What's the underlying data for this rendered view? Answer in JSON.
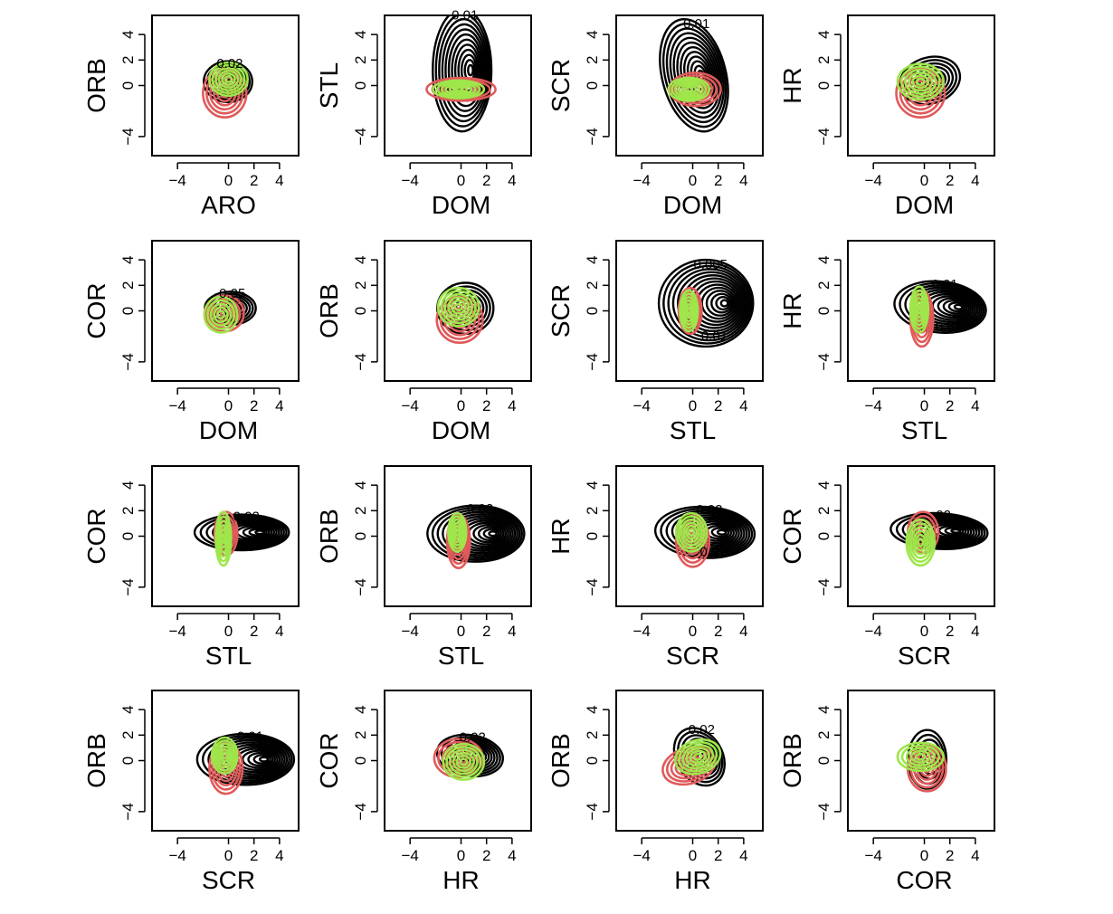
{
  "chart_data": [
    {
      "type": "contour",
      "xlabel": "ARO",
      "ylabel": "ORB",
      "xlim": [
        -6,
        5.5
      ],
      "ylim": [
        -5.5,
        5.5
      ],
      "xticks": [
        -4,
        0,
        2,
        4
      ],
      "yticks": [
        -4,
        0,
        2,
        4
      ],
      "xtick_labels": [
        "−4",
        "0",
        "2",
        "4"
      ],
      "ytick_labels": [
        "−4",
        "0",
        "2",
        "4"
      ],
      "contour_labels": [
        "0.02"
      ],
      "black": {
        "cx": 0,
        "cy": 0.3,
        "rx": 1.9,
        "ry": 1.6,
        "n": 8,
        "shift": 0.2,
        "tilt": 0
      },
      "red": {
        "cx": -0.3,
        "cy": -0.6,
        "rx": 1.7,
        "ry": 1.9,
        "n": 6,
        "shift": 0,
        "tilt": 0
      },
      "green": {
        "cx": 0,
        "cy": 0.5,
        "rx": 1.5,
        "ry": 1.3,
        "n": 6,
        "shift": 0,
        "tilt": 0
      }
    },
    {
      "type": "contour",
      "xlabel": "DOM",
      "ylabel": "STL",
      "xlim": [
        -6,
        5.5
      ],
      "ylim": [
        -5.5,
        5.5
      ],
      "xticks": [
        -4,
        0,
        2,
        4
      ],
      "yticks": [
        -4,
        0,
        2,
        4
      ],
      "xtick_labels": [
        "−4",
        "0",
        "2",
        "4"
      ],
      "ytick_labels": [
        "−4",
        "0",
        "2",
        "4"
      ],
      "contour_labels": [
        "0.01"
      ],
      "black": {
        "cx": 0.2,
        "cy": 1.2,
        "rx": 2.3,
        "ry": 4.8,
        "n": 12,
        "shift": 0.6,
        "tilt": 0
      },
      "red": {
        "cx": 0,
        "cy": -0.3,
        "rx": 2.7,
        "ry": 0.9,
        "n": 6,
        "shift": 0,
        "tilt": 0
      },
      "green": {
        "cx": -0.2,
        "cy": -0.3,
        "rx": 2.0,
        "ry": 0.7,
        "n": 6,
        "shift": 0,
        "tilt": 0
      }
    },
    {
      "type": "contour",
      "xlabel": "DOM",
      "ylabel": "SCR",
      "xlim": [
        -6,
        5.5
      ],
      "ylim": [
        -5.5,
        5.5
      ],
      "xticks": [
        -4,
        0,
        2,
        4
      ],
      "yticks": [
        -4,
        0,
        2,
        4
      ],
      "xtick_labels": [
        "−4",
        "0",
        "2",
        "4"
      ],
      "ytick_labels": [
        "−4",
        "0",
        "2",
        "4"
      ],
      "contour_labels": [
        "0.01"
      ],
      "black": {
        "cx": 0.2,
        "cy": 0.8,
        "rx": 2.5,
        "ry": 4.5,
        "n": 12,
        "shift": 0.5,
        "tilt": 0.25
      },
      "red": {
        "cx": 0.2,
        "cy": -0.3,
        "rx": 2.0,
        "ry": 1.3,
        "n": 6,
        "shift": 0,
        "tilt": 0
      },
      "green": {
        "cx": -0.3,
        "cy": -0.3,
        "rx": 1.6,
        "ry": 0.9,
        "n": 6,
        "shift": 0,
        "tilt": 0
      }
    },
    {
      "type": "contour",
      "xlabel": "DOM",
      "ylabel": "HR",
      "xlim": [
        -6,
        5.5
      ],
      "ylim": [
        -5.5,
        5.5
      ],
      "xticks": [
        -4,
        0,
        2,
        4
      ],
      "yticks": [
        -4,
        0,
        2,
        4
      ],
      "xtick_labels": [
        "−4",
        "0",
        "2",
        "4"
      ],
      "ytick_labels": [
        "−4",
        "0",
        "2",
        "4"
      ],
      "contour_labels": [],
      "black": {
        "cx": 0.5,
        "cy": 0.4,
        "rx": 2.4,
        "ry": 1.8,
        "n": 7,
        "shift": 0.3,
        "tilt": 0.3
      },
      "red": {
        "cx": -0.3,
        "cy": -0.6,
        "rx": 1.9,
        "ry": 1.9,
        "n": 6,
        "shift": 0,
        "tilt": 0
      },
      "green": {
        "cx": -0.3,
        "cy": 0.3,
        "rx": 1.8,
        "ry": 1.4,
        "n": 6,
        "shift": 0,
        "tilt": 0
      }
    },
    {
      "type": "contour",
      "xlabel": "DOM",
      "ylabel": "COR",
      "xlim": [
        -6,
        5.5
      ],
      "ylim": [
        -5.5,
        5.5
      ],
      "xticks": [
        -4,
        0,
        2,
        4
      ],
      "yticks": [
        -4,
        0,
        2,
        4
      ],
      "xtick_labels": [
        "−4",
        "0",
        "2",
        "4"
      ],
      "ytick_labels": [
        "−4",
        "0",
        "2",
        "4"
      ],
      "contour_labels": [
        "0.05"
      ],
      "black": {
        "cx": 0.2,
        "cy": 0.2,
        "rx": 2.0,
        "ry": 1.3,
        "n": 7,
        "shift": 0.3,
        "tilt": 0
      },
      "red": {
        "cx": -0.3,
        "cy": -0.2,
        "rx": 1.5,
        "ry": 1.4,
        "n": 5,
        "shift": 0,
        "tilt": 0
      },
      "green": {
        "cx": -0.6,
        "cy": -0.3,
        "rx": 1.3,
        "ry": 1.4,
        "n": 5,
        "shift": 0,
        "tilt": 0
      }
    },
    {
      "type": "contour",
      "xlabel": "DOM",
      "ylabel": "ORB",
      "xlim": [
        -6,
        5.5
      ],
      "ylim": [
        -5.5,
        5.5
      ],
      "xticks": [
        -4,
        0,
        2,
        4
      ],
      "yticks": [
        -4,
        0,
        2,
        4
      ],
      "xtick_labels": [
        "−4",
        "0",
        "2",
        "4"
      ],
      "ytick_labels": [
        "−4",
        "0",
        "2",
        "4"
      ],
      "contour_labels": [],
      "black": {
        "cx": 0.4,
        "cy": 0.2,
        "rx": 2.2,
        "ry": 2.0,
        "n": 7,
        "shift": 0.3,
        "tilt": 0
      },
      "red": {
        "cx": -0.1,
        "cy": -0.7,
        "rx": 1.8,
        "ry": 1.8,
        "n": 6,
        "shift": 0,
        "tilt": 0
      },
      "green": {
        "cx": -0.2,
        "cy": 0.3,
        "rx": 1.6,
        "ry": 1.5,
        "n": 6,
        "shift": 0,
        "tilt": 0
      }
    },
    {
      "type": "contour",
      "xlabel": "STL",
      "ylabel": "SCR",
      "xlim": [
        -6,
        5.5
      ],
      "ylim": [
        -5.5,
        5.5
      ],
      "xticks": [
        -4,
        0,
        2,
        4
      ],
      "yticks": [
        -4,
        0,
        2,
        4
      ],
      "xtick_labels": [
        "−4",
        "0",
        "2",
        "4"
      ],
      "ytick_labels": [
        "−4",
        "0",
        "2",
        "4"
      ],
      "contour_labels": [
        "0.005",
        "0.01"
      ],
      "black": {
        "cx": 1.3,
        "cy": 0.6,
        "rx": 3.7,
        "ry": 3.4,
        "n": 14,
        "shift": 1.3,
        "tilt": 0
      },
      "red": {
        "cx": -0.2,
        "cy": 0,
        "rx": 0.9,
        "ry": 1.8,
        "n": 6,
        "shift": 0,
        "tilt": 0
      },
      "green": {
        "cx": -0.3,
        "cy": 0,
        "rx": 0.7,
        "ry": 1.6,
        "n": 6,
        "shift": 0,
        "tilt": 0
      }
    },
    {
      "type": "contour",
      "xlabel": "STL",
      "ylabel": "HR",
      "xlim": [
        -6,
        5.5
      ],
      "ylim": [
        -5.5,
        5.5
      ],
      "xticks": [
        -4,
        0,
        2,
        4
      ],
      "yticks": [
        -4,
        0,
        2,
        4
      ],
      "xtick_labels": [
        "−4",
        "0",
        "2",
        "4"
      ],
      "ytick_labels": [
        "−4",
        "0",
        "2",
        "4"
      ],
      "contour_labels": [
        "0.01",
        "0.01"
      ],
      "black": {
        "cx": 1.5,
        "cy": 0.3,
        "rx": 3.6,
        "ry": 2.0,
        "n": 12,
        "shift": 1.3,
        "tilt": -0.1
      },
      "red": {
        "cx": -0.2,
        "cy": -0.6,
        "rx": 0.9,
        "ry": 2.2,
        "n": 6,
        "shift": 0,
        "tilt": 0
      },
      "green": {
        "cx": -0.4,
        "cy": 0.1,
        "rx": 0.7,
        "ry": 1.8,
        "n": 6,
        "shift": 0,
        "tilt": 0
      }
    },
    {
      "type": "contour",
      "xlabel": "STL",
      "ylabel": "COR",
      "xlim": [
        -6,
        5.5
      ],
      "ylim": [
        -5.5,
        5.5
      ],
      "xticks": [
        -4,
        0,
        2,
        4
      ],
      "yticks": [
        -4,
        0,
        2,
        4
      ],
      "xtick_labels": [
        "−4",
        "0",
        "2",
        "4"
      ],
      "ytick_labels": [
        "−4",
        "0",
        "2",
        "4"
      ],
      "contour_labels": [
        "0.02"
      ],
      "black": {
        "cx": 1.3,
        "cy": 0.3,
        "rx": 3.7,
        "ry": 1.4,
        "n": 11,
        "shift": 1.3,
        "tilt": 0
      },
      "red": {
        "cx": -0.2,
        "cy": 0.2,
        "rx": 0.9,
        "ry": 1.7,
        "n": 5,
        "shift": 0,
        "tilt": 0
      },
      "green": {
        "cx": -0.4,
        "cy": -0.2,
        "rx": 0.6,
        "ry": 2.1,
        "n": 6,
        "shift": 0,
        "tilt": 0
      }
    },
    {
      "type": "contour",
      "xlabel": "STL",
      "ylabel": "ORB",
      "xlim": [
        -6,
        5.5
      ],
      "ylim": [
        -5.5,
        5.5
      ],
      "xticks": [
        -4,
        0,
        2,
        4
      ],
      "yticks": [
        -4,
        0,
        2,
        4
      ],
      "xtick_labels": [
        "−4",
        "0",
        "2",
        "4"
      ],
      "ytick_labels": [
        "−4",
        "0",
        "2",
        "4"
      ],
      "contour_labels": [
        "0.02",
        ".01"
      ],
      "black": {
        "cx": 1.4,
        "cy": 0.2,
        "rx": 3.8,
        "ry": 2.2,
        "n": 13,
        "shift": 1.2,
        "tilt": 0
      },
      "red": {
        "cx": -0.2,
        "cy": -0.4,
        "rx": 0.9,
        "ry": 2.1,
        "n": 6,
        "shift": 0,
        "tilt": 0
      },
      "green": {
        "cx": -0.3,
        "cy": 0.3,
        "rx": 0.7,
        "ry": 1.5,
        "n": 6,
        "shift": 0,
        "tilt": 0
      }
    },
    {
      "type": "contour",
      "xlabel": "SCR",
      "ylabel": "HR",
      "xlim": [
        -6,
        5.5
      ],
      "ylim": [
        -5.5,
        5.5
      ],
      "xticks": [
        -4,
        0,
        2,
        4
      ],
      "yticks": [
        -4,
        0,
        2,
        4
      ],
      "xtick_labels": [
        "−4",
        "0",
        "2",
        "4"
      ],
      "ytick_labels": [
        "−4",
        "0",
        "2",
        "4"
      ],
      "contour_labels": [
        "0.02",
        "0.01"
      ],
      "black": {
        "cx": 1.2,
        "cy": 0.3,
        "rx": 3.9,
        "ry": 2.0,
        "n": 12,
        "shift": 1.2,
        "tilt": -0.05
      },
      "red": {
        "cx": 0,
        "cy": -0.4,
        "rx": 1.3,
        "ry": 2.0,
        "n": 6,
        "shift": 0,
        "tilt": 0
      },
      "green": {
        "cx": -0.1,
        "cy": 0.3,
        "rx": 1.2,
        "ry": 1.5,
        "n": 6,
        "shift": 0,
        "tilt": 0
      }
    },
    {
      "type": "contour",
      "xlabel": "SCR",
      "ylabel": "COR",
      "xlim": [
        -6,
        5.5
      ],
      "ylim": [
        -5.5,
        5.5
      ],
      "xticks": [
        -4,
        0,
        2,
        4
      ],
      "yticks": [
        -4,
        0,
        2,
        4
      ],
      "xtick_labels": [
        "−4",
        "0",
        "2",
        "4"
      ],
      "ytick_labels": [
        "−4",
        "0",
        "2",
        "4"
      ],
      "contour_labels": [
        "02"
      ],
      "black": {
        "cx": 1.4,
        "cy": 0.4,
        "rx": 3.8,
        "ry": 1.4,
        "n": 11,
        "shift": 1.2,
        "tilt": -0.05
      },
      "red": {
        "cx": -0.1,
        "cy": 0.3,
        "rx": 1.2,
        "ry": 1.6,
        "n": 5,
        "shift": 0,
        "tilt": 0
      },
      "green": {
        "cx": -0.3,
        "cy": -0.5,
        "rx": 1.1,
        "ry": 1.8,
        "n": 6,
        "shift": 0,
        "tilt": 0
      }
    },
    {
      "type": "contour",
      "xlabel": "SCR",
      "ylabel": "ORB",
      "xlim": [
        -6,
        5.5
      ],
      "ylim": [
        -5.5,
        5.5
      ],
      "xticks": [
        -4,
        0,
        2,
        4
      ],
      "yticks": [
        -4,
        0,
        2,
        4
      ],
      "xtick_labels": [
        "−4",
        "0",
        "2",
        "4"
      ],
      "ytick_labels": [
        "−4",
        "0",
        "2",
        "4"
      ],
      "contour_labels": [
        "0.01"
      ],
      "black": {
        "cx": 1.6,
        "cy": 0.1,
        "rx": 3.8,
        "ry": 2.0,
        "n": 12,
        "shift": 1.3,
        "tilt": 0
      },
      "red": {
        "cx": -0.2,
        "cy": -0.6,
        "rx": 1.3,
        "ry": 2.0,
        "n": 6,
        "shift": 0,
        "tilt": 0
      },
      "green": {
        "cx": -0.3,
        "cy": 0.4,
        "rx": 1.0,
        "ry": 1.4,
        "n": 6,
        "shift": 0,
        "tilt": 0
      }
    },
    {
      "type": "contour",
      "xlabel": "HR",
      "ylabel": "COR",
      "xlim": [
        -6,
        5.5
      ],
      "ylim": [
        -5.5,
        5.5
      ],
      "xticks": [
        -4,
        0,
        2,
        4
      ],
      "yticks": [
        -4,
        0,
        2,
        4
      ],
      "xtick_labels": [
        "−4",
        "0",
        "2",
        "4"
      ],
      "ytick_labels": [
        "−4",
        "0",
        "2",
        "4"
      ],
      "contour_labels": [
        "0.02"
      ],
      "black": {
        "cx": 0.8,
        "cy": 0.4,
        "rx": 2.6,
        "ry": 1.6,
        "n": 9,
        "shift": 0.5,
        "tilt": -0.15
      },
      "red": {
        "cx": -0.2,
        "cy": 0.2,
        "rx": 1.9,
        "ry": 1.5,
        "n": 6,
        "shift": 0,
        "tilt": 0
      },
      "green": {
        "cx": 0.2,
        "cy": -0.1,
        "rx": 1.6,
        "ry": 1.4,
        "n": 6,
        "shift": 0,
        "tilt": 0
      }
    },
    {
      "type": "contour",
      "xlabel": "HR",
      "ylabel": "ORB",
      "xlim": [
        -6,
        5.5
      ],
      "ylim": [
        -5.5,
        5.5
      ],
      "xticks": [
        -4,
        0,
        2,
        4
      ],
      "yticks": [
        -4,
        0,
        2,
        4
      ],
      "xtick_labels": [
        "−4",
        "0",
        "2",
        "4"
      ],
      "ytick_labels": [
        "−4",
        "0",
        "2",
        "4"
      ],
      "contour_labels": [
        "0.02"
      ],
      "black": {
        "cx": 0.6,
        "cy": 0.3,
        "rx": 1.8,
        "ry": 2.4,
        "n": 8,
        "shift": 0.4,
        "tilt": 0.55
      },
      "red": {
        "cx": -0.3,
        "cy": -0.4,
        "rx": 2.1,
        "ry": 1.4,
        "n": 6,
        "shift": 0,
        "tilt": 0.3
      },
      "green": {
        "cx": 0.4,
        "cy": 0.3,
        "rx": 1.8,
        "ry": 1.3,
        "n": 6,
        "shift": 0,
        "tilt": 0.3
      }
    },
    {
      "type": "contour",
      "xlabel": "COR",
      "ylabel": "ORB",
      "xlim": [
        -6,
        5.5
      ],
      "ylim": [
        -5.5,
        5.5
      ],
      "xticks": [
        -4,
        0,
        2,
        4
      ],
      "yticks": [
        -4,
        0,
        2,
        4
      ],
      "xtick_labels": [
        "−4",
        "0",
        "2",
        "4"
      ],
      "ytick_labels": [
        "−4",
        "0",
        "2",
        "4"
      ],
      "contour_labels": [],
      "black": {
        "cx": 0.3,
        "cy": 0.1,
        "rx": 1.5,
        "ry": 2.3,
        "n": 6,
        "shift": 0.4,
        "tilt": 0
      },
      "red": {
        "cx": 0.2,
        "cy": -0.6,
        "rx": 1.5,
        "ry": 1.8,
        "n": 6,
        "shift": 0,
        "tilt": 0
      },
      "green": {
        "cx": -0.3,
        "cy": 0.3,
        "rx": 1.8,
        "ry": 1.1,
        "n": 5,
        "shift": 0,
        "tilt": 0
      }
    }
  ],
  "colors": {
    "contour_primary": "#000000",
    "group_red": "#e05a5a",
    "group_green": "#9ee64a"
  }
}
